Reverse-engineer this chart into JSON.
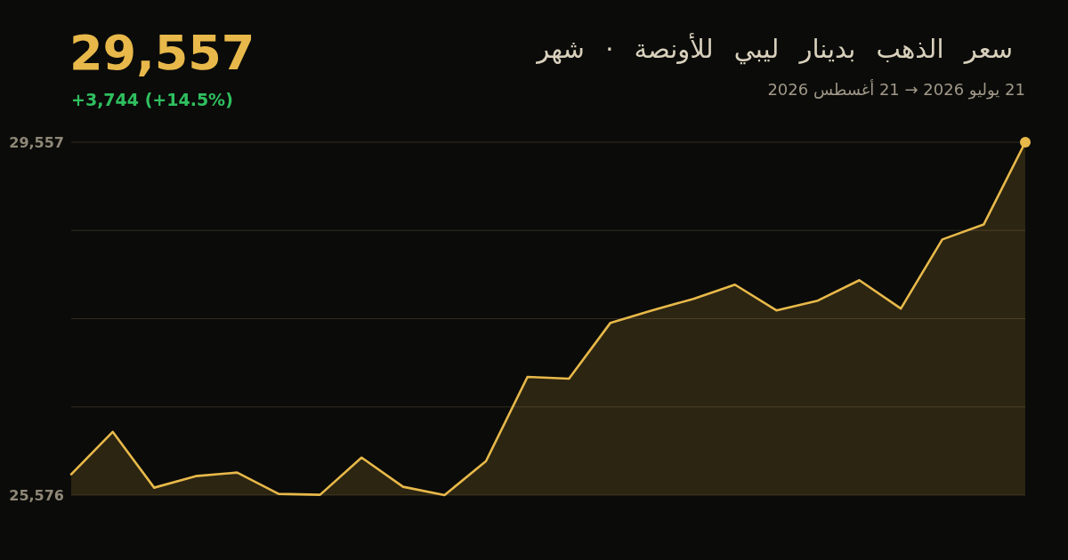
{
  "chart_data": {
    "type": "area",
    "title": "سعر الذهب بدينار ليبي للأونصة · شهر",
    "subtitle": "21 يوليو 2026 → 21 أغسطس 2026",
    "annotations": [
      "29,557",
      "+3,744 (+14.5%)"
    ],
    "categories": [
      null,
      null,
      null,
      null,
      null,
      null,
      null,
      null,
      null,
      null,
      null,
      null,
      null,
      null,
      null,
      null,
      null,
      null,
      null,
      null,
      null,
      null,
      null,
      null
    ],
    "series": [
      {
        "color": "#e8b94a",
        "values": [
          25810,
          26290,
          25660,
          25790,
          25830,
          25590,
          25580,
          26000,
          25670,
          25576,
          25960,
          26910,
          26890,
          27520,
          27660,
          27790,
          27950,
          27660,
          27770,
          28000,
          27680,
          28460,
          28630,
          29557
        ]
      }
    ],
    "ylim": [
      25576,
      29557
    ],
    "yticks": [
      {
        "value": 25576,
        "label": "25,576"
      },
      {
        "value": 26571.25,
        "label": null
      },
      {
        "value": 27566.5,
        "label": null
      },
      {
        "value": 28561.75,
        "label": null
      },
      {
        "value": 29557,
        "label": "29,557"
      }
    ],
    "tick_labels": "y",
    "grid": "y",
    "marker": "none",
    "line_style": "solid"
  }
}
